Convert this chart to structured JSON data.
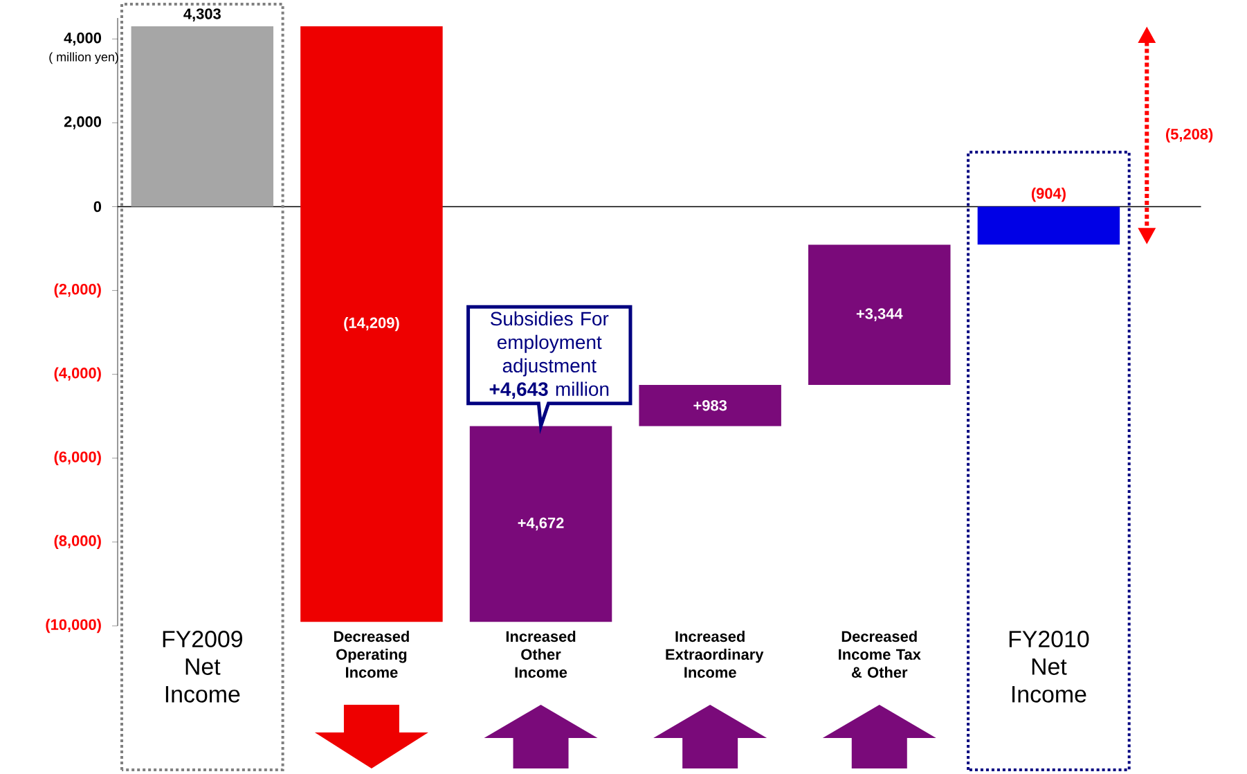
{
  "chart_data": {
    "type": "bar",
    "categories": [
      "FY2009 Net Income",
      "Decreased Operating Income",
      "Increased Other Income",
      "Increased Extraordinary Income",
      "Decreased Income Tax & Other",
      "FY2010 Net Income"
    ],
    "values": [
      4303,
      -14209,
      4672,
      983,
      3344,
      -904
    ],
    "base": [
      0,
      4303,
      -9906,
      -5234,
      -4251,
      0
    ],
    "colors": [
      "#a6a6a6",
      "#ee0000",
      "#7a0a7a",
      "#7a0a7a",
      "#7a0a7a",
      "#0000e6"
    ],
    "value_labels": [
      "4,303",
      "(14,209)",
      "+4,672",
      "+983",
      "+3,344",
      "(904)"
    ],
    "ylim": [
      -10000,
      4500
    ],
    "yticks": [
      {
        "value": 4000,
        "label": "4,000"
      },
      {
        "value": 2000,
        "label": "2,000"
      },
      0,
      {
        "value": -2000,
        "label": "(2,000)"
      },
      {
        "value": -4000,
        "label": "(4,000)"
      },
      {
        "value": -6000,
        "label": "(6,000)"
      },
      {
        "value": -8000,
        "label": "(8,000)"
      },
      {
        "value": -10000,
        "label": "(10,000)"
      }
    ],
    "ref_lines": [
      {
        "axis": "y",
        "value": 0,
        "color": "#000000"
      }
    ],
    "annotations": [
      "( million yen)",
      {
        "text": "Subsidies For employment adjustment **+4,643** million",
        "x": "Increased Other Income",
        "y": -5234
      },
      "(5,208)"
    ],
    "grid": false
  }
}
